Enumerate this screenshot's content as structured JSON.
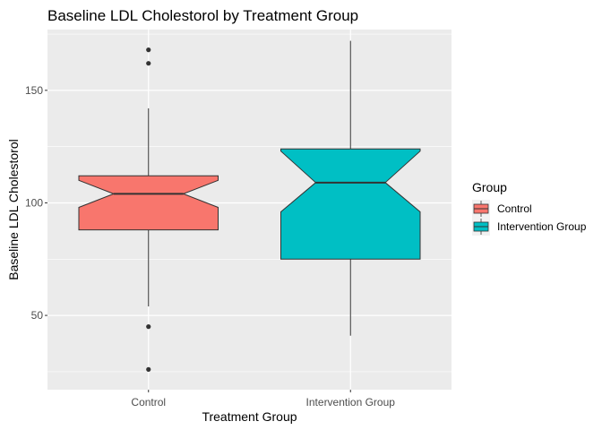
{
  "chart_data": {
    "type": "boxplot",
    "title": "Baseline LDL Cholestorol by Treatment Group",
    "xlabel": "Treatment Group",
    "ylabel": "Baseline LDL Cholestorol",
    "ylim": [
      17,
      177
    ],
    "yticks": [
      50,
      100,
      150
    ],
    "grid": true,
    "notched": true,
    "legend": {
      "title": "Group",
      "position": "right"
    },
    "categories": [
      "Control",
      "Intervention Group"
    ],
    "series": [
      {
        "name": "Control",
        "color": "#F8766D",
        "whisker_low": 54,
        "q1": 88,
        "median": 104,
        "q3": 112,
        "whisker_high": 142,
        "notch_low": 98,
        "notch_high": 110,
        "outliers": [
          26,
          45,
          162,
          168
        ]
      },
      {
        "name": "Intervention Group",
        "color": "#00BFC4",
        "whisker_low": 41,
        "q1": 75,
        "median": 109,
        "q3": 124,
        "whisker_high": 172,
        "notch_low": 96,
        "notch_high": 123,
        "outliers": []
      }
    ]
  }
}
